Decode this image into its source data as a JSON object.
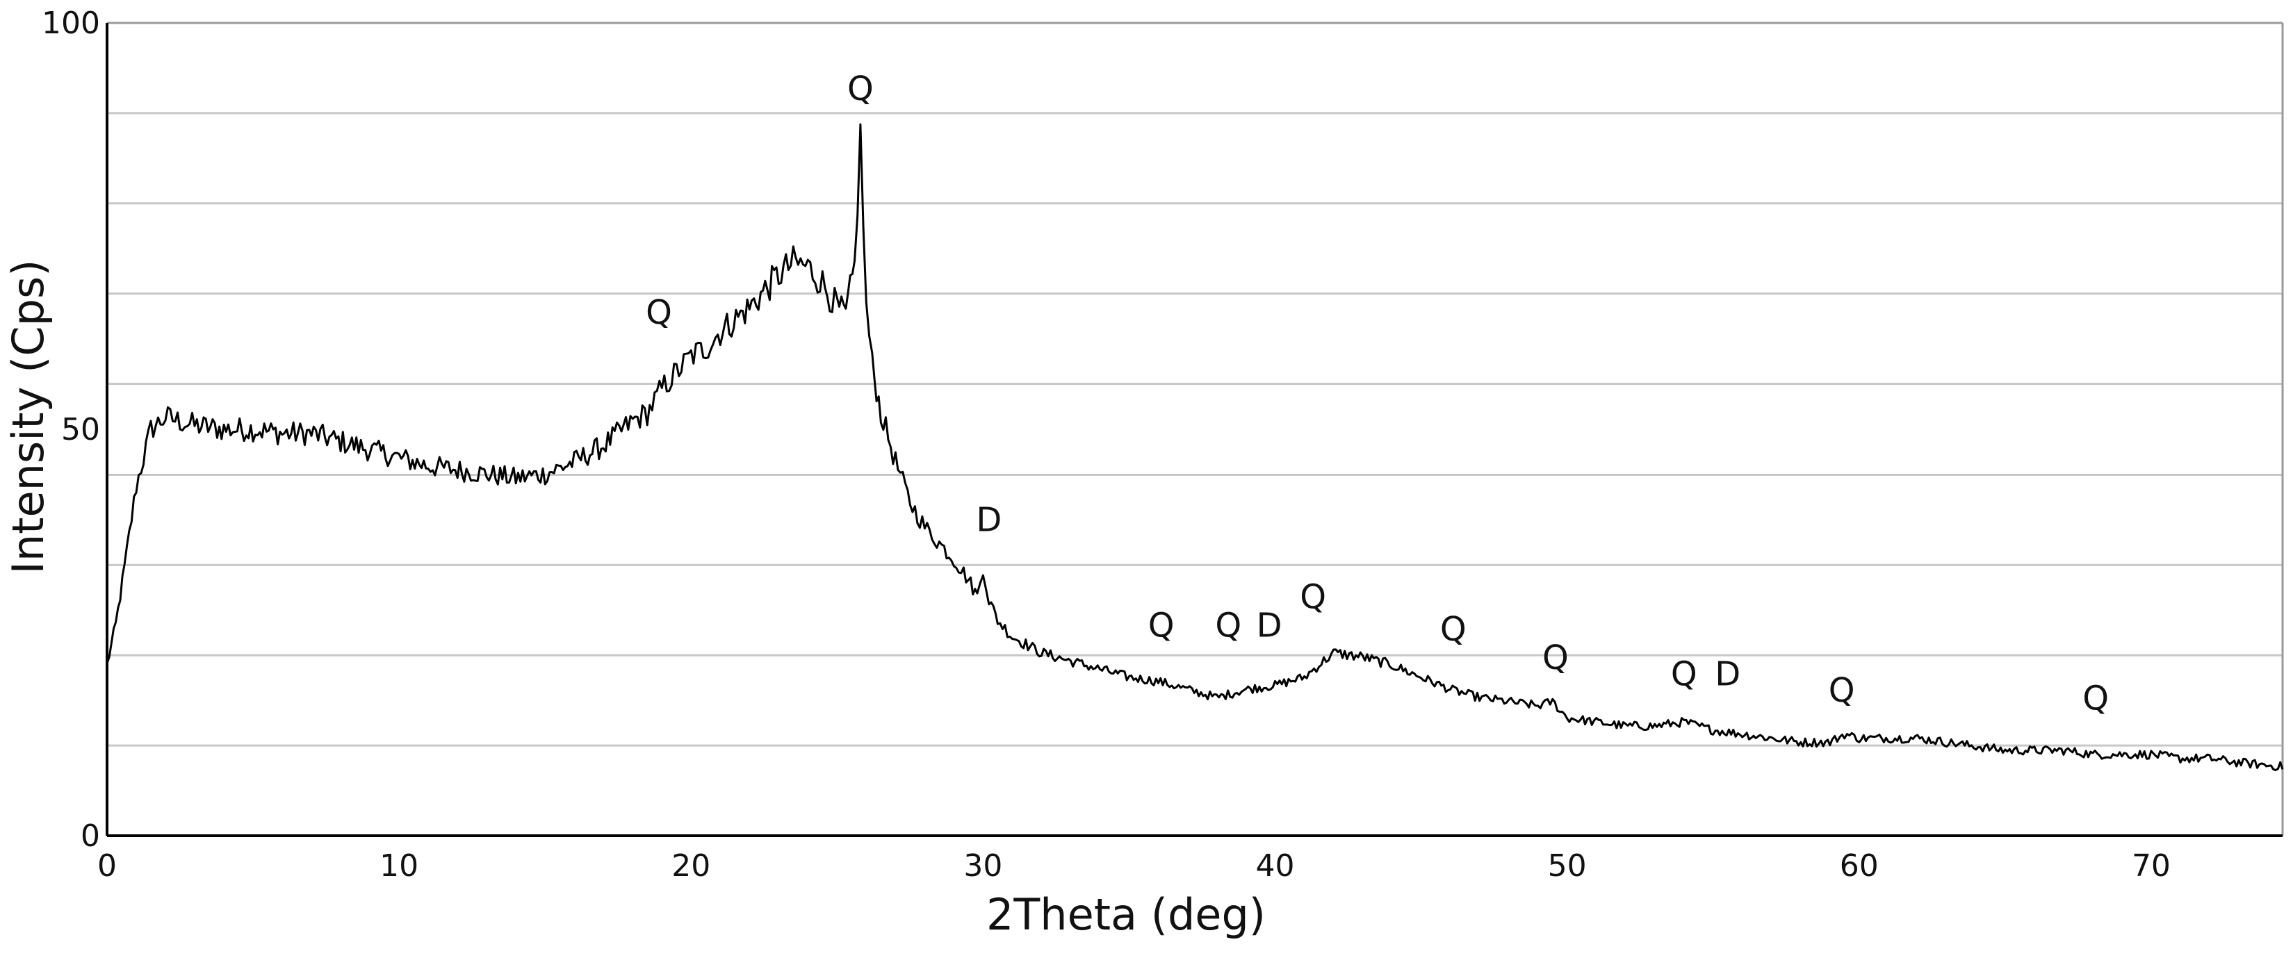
{
  "chart_data": {
    "type": "line",
    "title": "",
    "xlabel": "2Theta (deg)",
    "ylabel": "Intensity (Cps)",
    "xlim": [
      0,
      74.5
    ],
    "ylim": [
      0,
      100
    ],
    "x_ticks": [
      0,
      10,
      20,
      30,
      40,
      50,
      60,
      70
    ],
    "y_tick_labels": [
      0,
      50,
      100
    ],
    "y_gridlines": [
      0,
      11.1,
      22.2,
      33.3,
      44.4,
      55.6,
      66.7,
      77.8,
      88.9,
      100
    ],
    "grid": true,
    "legend": "none",
    "series": [
      {
        "x": [
          0,
          0.3,
          0.6,
          1,
          1.5,
          2,
          2.5,
          3,
          4,
          5,
          6,
          7,
          8,
          9,
          10,
          11,
          12,
          13,
          14,
          15,
          16,
          17,
          18,
          18.5,
          19,
          19.5,
          20,
          20.5,
          21,
          22,
          23,
          23.5,
          24,
          24.5,
          25,
          25.3,
          25.6,
          25.8,
          26,
          26.2,
          26.5,
          27,
          27.5,
          28,
          28.5,
          29,
          29.5,
          29.8,
          30,
          30.2,
          30.5,
          31,
          32,
          33,
          34,
          35,
          36,
          37,
          38,
          39,
          40,
          41,
          41.5,
          42,
          43,
          44,
          45,
          46,
          47,
          48,
          49,
          49.5,
          50,
          51,
          52,
          53,
          54,
          55,
          56,
          57,
          58,
          59,
          59.5,
          60,
          61,
          62,
          63,
          64,
          65,
          66,
          67,
          68,
          69,
          70,
          71,
          72,
          73,
          74.5
        ],
        "y": [
          21,
          26,
          33,
          43,
          50,
          51.5,
          51,
          50.5,
          50,
          50,
          49.5,
          49.5,
          48.5,
          47.5,
          46.5,
          45.5,
          45,
          44.5,
          44,
          44.5,
          46,
          48,
          51,
          52,
          55,
          57,
          59,
          60,
          62,
          65,
          69,
          70.5,
          70,
          68,
          65,
          64,
          70,
          86,
          65,
          58,
          52,
          46,
          41,
          38,
          36,
          34,
          31.5,
          29.5,
          33,
          29,
          26.5,
          24.5,
          22.5,
          21.5,
          20.5,
          19.5,
          19,
          18,
          17,
          18,
          18.5,
          19.5,
          21,
          22.5,
          22,
          21,
          19.5,
          18,
          17,
          16.5,
          16,
          16.5,
          14.5,
          14,
          13.5,
          13.5,
          14,
          13,
          12.5,
          12,
          11.5,
          11.5,
          12.5,
          12,
          12,
          12,
          11.5,
          11,
          10.5,
          10.5,
          10.5,
          10,
          10,
          10,
          9.5,
          9.5,
          9,
          8.5
        ]
      }
    ],
    "annotations": [
      {
        "text": "Q",
        "x": 18.9,
        "y": 63
      },
      {
        "text": "Q",
        "x": 25.8,
        "y": 90.5
      },
      {
        "text": "D",
        "x": 30.2,
        "y": 37.5
      },
      {
        "text": "Q",
        "x": 36.1,
        "y": 24.5
      },
      {
        "text": "Q",
        "x": 38.4,
        "y": 24.5
      },
      {
        "text": "D",
        "x": 39.8,
        "y": 24.5
      },
      {
        "text": "Q",
        "x": 41.3,
        "y": 28
      },
      {
        "text": "Q",
        "x": 46.1,
        "y": 24
      },
      {
        "text": "Q",
        "x": 49.6,
        "y": 20.5
      },
      {
        "text": "Q",
        "x": 54,
        "y": 18.5
      },
      {
        "text": "D",
        "x": 55.5,
        "y": 18.5
      },
      {
        "text": "Q",
        "x": 59.4,
        "y": 16.5
      },
      {
        "text": "Q",
        "x": 68.1,
        "y": 15.5
      }
    ]
  }
}
